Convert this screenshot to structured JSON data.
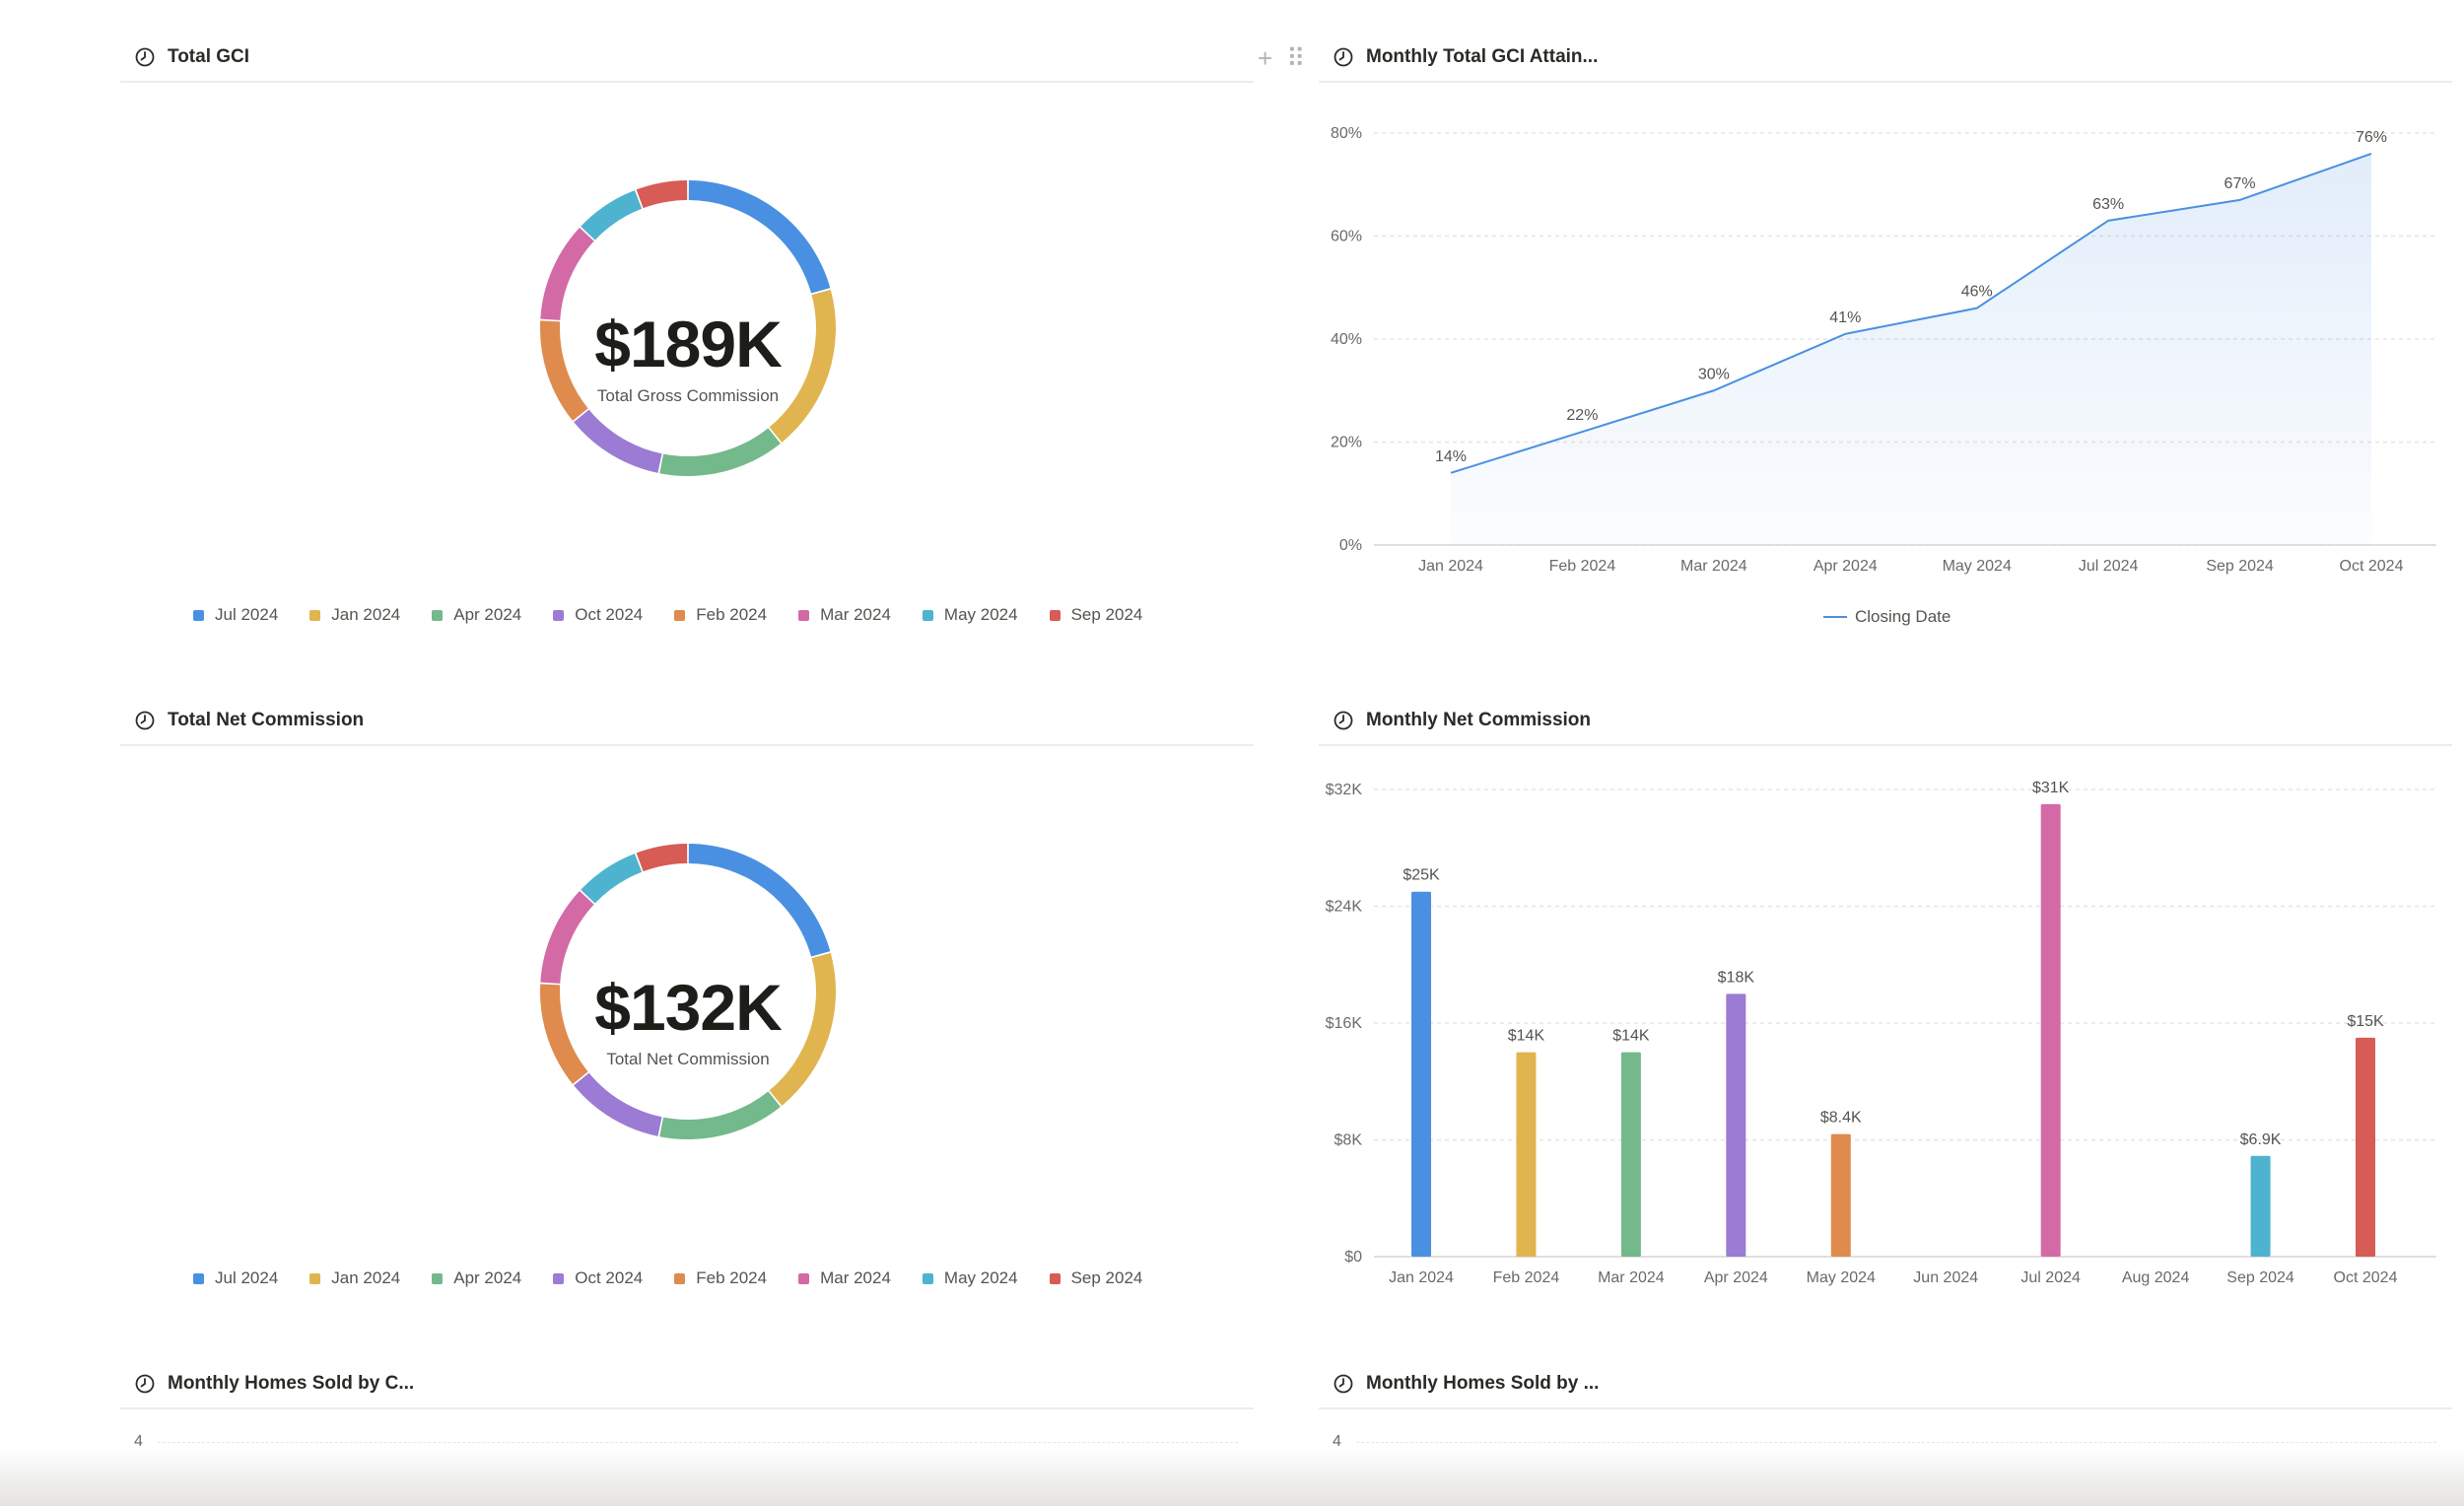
{
  "panels": {
    "total_gci": {
      "title": "Total GCI",
      "center_value": "$189K",
      "center_label": "Total Gross Commission"
    },
    "monthly_total_gci": {
      "title": "Monthly Total GCI Attain...",
      "legend_label": "Closing Date"
    },
    "total_net": {
      "title": "Total Net Commission",
      "center_value": "$132K",
      "center_label": "Total Net Commission"
    },
    "monthly_net": {
      "title": "Monthly Net Commission"
    },
    "homes_sold_1": {
      "title": "Monthly Homes Sold by C...",
      "y_top_tick": "4"
    },
    "homes_sold_2": {
      "title": "Monthly Homes Sold by ...",
      "y_top_tick": "4"
    }
  },
  "toolbar": {
    "add_icon": "plus-icon",
    "drag_icon": "drag-handle-icon"
  },
  "chart_data": [
    {
      "type": "pie",
      "title": "Total GCI",
      "legend_position": "bottom",
      "categories": [
        "Jul 2024",
        "Jan 2024",
        "Apr 2024",
        "Oct 2024",
        "Feb 2024",
        "Mar 2024",
        "May 2024",
        "Sep 2024"
      ],
      "values": [
        0.183,
        0.163,
        0.124,
        0.097,
        0.104,
        0.098,
        0.064,
        0.051
      ],
      "colors": [
        "#4a90e2",
        "#e0b44f",
        "#73b98b",
        "#9b7bd4",
        "#de8b4d",
        "#d36aa5",
        "#4eb3cf",
        "#d65c55"
      ]
    },
    {
      "type": "area",
      "title": "Monthly Total GCI Attain...",
      "x": [
        "Jan 2024",
        "Feb 2024",
        "Mar 2024",
        "Apr 2024",
        "May 2024",
        "Jul 2024",
        "Sep 2024",
        "Oct 2024"
      ],
      "series": [
        {
          "name": "Closing Date",
          "values": [
            14,
            22,
            30,
            41,
            46,
            63,
            67,
            76
          ],
          "labels": [
            "14%",
            "22%",
            "30%",
            "41%",
            "46%",
            "63%",
            "67%",
            "76%"
          ]
        }
      ],
      "ylim": [
        0,
        80
      ],
      "yticks": [
        "0%",
        "20%",
        "40%",
        "60%",
        "80%"
      ],
      "grid": true,
      "legend_position": "bottom",
      "color": "#4a90e2"
    },
    {
      "type": "pie",
      "title": "Total Net Commission",
      "legend_position": "bottom",
      "categories": [
        "Jul 2024",
        "Jan 2024",
        "Apr 2024",
        "Oct 2024",
        "Feb 2024",
        "Mar 2024",
        "May 2024",
        "Sep 2024"
      ],
      "values": [
        0.183,
        0.163,
        0.124,
        0.097,
        0.104,
        0.098,
        0.064,
        0.051
      ],
      "colors": [
        "#4a90e2",
        "#e0b44f",
        "#73b98b",
        "#9b7bd4",
        "#de8b4d",
        "#d36aa5",
        "#4eb3cf",
        "#d65c55"
      ]
    },
    {
      "type": "bar",
      "title": "Monthly Net Commission",
      "categories": [
        "Jan 2024",
        "Feb 2024",
        "Mar 2024",
        "Apr 2024",
        "May 2024",
        "Jun 2024",
        "Jul 2024",
        "Aug 2024",
        "Sep 2024",
        "Oct 2024"
      ],
      "values": [
        25000,
        14000,
        14000,
        18000,
        8400,
        0,
        31000,
        0,
        6900,
        15000
      ],
      "labels": [
        "$25K",
        "$14K",
        "$14K",
        "$18K",
        "$8.4K",
        "",
        "$31K",
        "",
        "$6.9K",
        "$15K"
      ],
      "colors": [
        "#4a90e2",
        "#e0b44f",
        "#73b98b",
        "#9b7bd4",
        "#de8b4d",
        "#4a90e2",
        "#d36aa5",
        "#4a90e2",
        "#4eb3cf",
        "#d65c55"
      ],
      "ylim": [
        0,
        32000
      ],
      "yticks": [
        "$0",
        "$8K",
        "$16K",
        "$24K",
        "$32K"
      ],
      "grid": true
    }
  ]
}
